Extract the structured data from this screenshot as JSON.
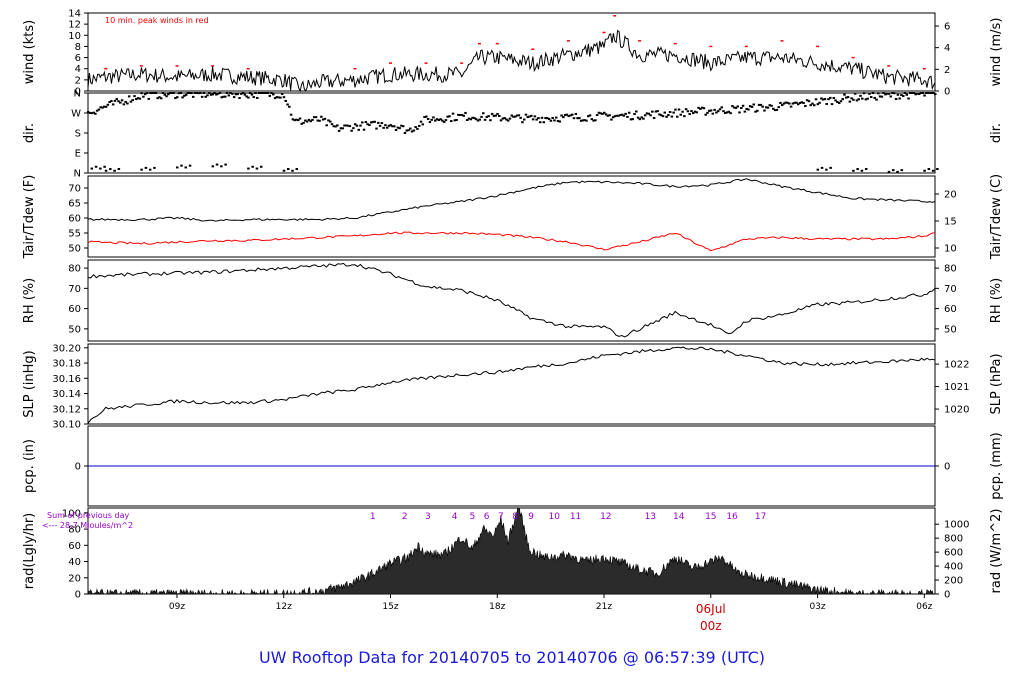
{
  "title": "UW Rooftop Data for 20140705  to  20140706 @ 06:57:39  (UTC)",
  "colors": {
    "series": "#000000",
    "peak": "#ff0000",
    "dewpoint": "#ff0000",
    "precip": "#0000cc",
    "title": "#1a1adb",
    "annotation": "#9900cc",
    "date_label": "#cc0000"
  },
  "x_axis": {
    "range_hours": [
      6.5,
      30.3
    ],
    "ticks": [
      {
        "x": 9,
        "label": "09z"
      },
      {
        "x": 12,
        "label": "12z"
      },
      {
        "x": 15,
        "label": "15z"
      },
      {
        "x": 18,
        "label": "18z"
      },
      {
        "x": 21,
        "label": "21z"
      },
      {
        "x": 24,
        "label": "00z"
      },
      {
        "x": 27,
        "label": "03z"
      },
      {
        "x": 30,
        "label": "06z"
      }
    ],
    "date_label": "06Jul"
  },
  "chart_data": [
    {
      "type": "line",
      "panel": "wind",
      "ylabel": "wind (kts)",
      "ylabel_right": "wind (m/s)",
      "annotation": "10 min. peak winds in red",
      "ylim": [
        0,
        14
      ],
      "yticks": [
        0,
        2,
        4,
        6,
        8,
        10,
        12,
        14
      ],
      "right_ticks": [
        {
          "v": 0,
          "label": "0"
        },
        {
          "v": 3.89,
          "label": "2"
        },
        {
          "v": 7.78,
          "label": "4"
        },
        {
          "v": 11.66,
          "label": "6"
        }
      ],
      "x": [
        6.5,
        7,
        8,
        9,
        10,
        11,
        12,
        12.5,
        13,
        14,
        15,
        16,
        17,
        17.5,
        18,
        19,
        20,
        21,
        21.3,
        22,
        23,
        24,
        25,
        26,
        27,
        28,
        29,
        30,
        30.3
      ],
      "series": [
        {
          "values": [
            2,
            2.5,
            3,
            2.5,
            3,
            2.5,
            2,
            0.5,
            1.5,
            2,
            3,
            3,
            3,
            6,
            6,
            5,
            6.5,
            8,
            10,
            6.5,
            6.5,
            5,
            6,
            6,
            5,
            4,
            2.5,
            2,
            1.5
          ]
        }
      ],
      "peaks_x": [
        7,
        8,
        9,
        10,
        11,
        14,
        15,
        16,
        17,
        17.5,
        18,
        19,
        20,
        21,
        21.3,
        22,
        23,
        24,
        25,
        26,
        27,
        28,
        29,
        30
      ],
      "peaks": [
        4,
        4.5,
        4.5,
        4.5,
        4,
        4,
        5,
        5,
        5,
        8.5,
        8.5,
        7.5,
        9,
        10.5,
        13.5,
        9,
        8.5,
        8,
        8,
        9,
        8,
        6,
        4.5,
        4
      ]
    },
    {
      "type": "scatter",
      "panel": "dir",
      "ylabel": "dir.",
      "ylabel_right": "dir.",
      "ylim": [
        0,
        360
      ],
      "yticks": [
        0,
        90,
        180,
        270,
        360
      ],
      "ytick_labels": [
        "N",
        "E",
        "S",
        "W",
        "N"
      ],
      "x": [
        6.5,
        7,
        8,
        9,
        10,
        11,
        11.5,
        12,
        12.3,
        13,
        13.5,
        14,
        15,
        15.5,
        16,
        17,
        18,
        19,
        20,
        21,
        22,
        23,
        24,
        25,
        26,
        27,
        28,
        29,
        30,
        30.3
      ],
      "values": [
        270,
        300,
        350,
        355,
        355,
        355,
        355,
        355,
        230,
        240,
        200,
        210,
        220,
        190,
        240,
        255,
        250,
        245,
        250,
        255,
        260,
        270,
        280,
        290,
        300,
        320,
        340,
        350,
        355,
        355
      ],
      "low_x": [
        6.6,
        7,
        8,
        9,
        10,
        11,
        12,
        27,
        28,
        29,
        30
      ],
      "low_values": [
        20,
        10,
        15,
        25,
        30,
        20,
        10,
        15,
        10,
        5,
        10
      ]
    },
    {
      "type": "line",
      "panel": "temperature",
      "ylabel": "Tair/Tdew (F)",
      "ylabel_right": "Tair/Tdew (C)",
      "ylim": [
        47,
        74
      ],
      "yticks": [
        50,
        55,
        60,
        65,
        70
      ],
      "right_ticks": [
        {
          "v": 50,
          "label": "10"
        },
        {
          "v": 59,
          "label": "15"
        },
        {
          "v": 68,
          "label": "20"
        }
      ],
      "x": [
        6.5,
        8,
        9,
        10,
        11,
        12,
        13,
        14,
        15,
        16,
        17,
        18,
        19,
        20,
        21,
        22,
        23,
        24,
        25,
        26,
        27,
        28,
        29,
        30,
        30.3
      ],
      "series": [
        {
          "values": [
            59.5,
            59.5,
            60,
            59,
            59.5,
            59.5,
            59.5,
            60,
            62,
            64,
            65.5,
            67.5,
            70,
            72,
            72,
            71.5,
            70.5,
            71,
            73,
            70.5,
            68.5,
            66.5,
            66,
            65.5,
            65.5
          ]
        },
        {
          "values": [
            52,
            51.5,
            52,
            52.5,
            52.5,
            53,
            53.5,
            54,
            55,
            55,
            55,
            54.5,
            53.5,
            52,
            49.5,
            52,
            55,
            49,
            53,
            53.5,
            53,
            53,
            53,
            54,
            55
          ]
        }
      ]
    },
    {
      "type": "line",
      "panel": "rh",
      "ylabel": "RH (%)",
      "ylabel_right": "RH (%)",
      "ylim": [
        44,
        84
      ],
      "yticks": [
        50,
        60,
        70,
        80
      ],
      "right_ticks": [
        {
          "v": 50,
          "label": "50"
        },
        {
          "v": 60,
          "label": "60"
        },
        {
          "v": 70,
          "label": "70"
        },
        {
          "v": 80,
          "label": "80"
        }
      ],
      "x": [
        6.5,
        8,
        10,
        12,
        14,
        15,
        16,
        17,
        18,
        19,
        20,
        21,
        21.5,
        22,
        23,
        24,
        24.5,
        25,
        26,
        27,
        28,
        29,
        30,
        30.3
      ],
      "series": [
        {
          "values": [
            76,
            77,
            78,
            80,
            82,
            77,
            71,
            69,
            64,
            55,
            51,
            51,
            46,
            50,
            58,
            52,
            47,
            54,
            57,
            62,
            63,
            65,
            67,
            70
          ]
        }
      ]
    },
    {
      "type": "line",
      "panel": "pressure",
      "ylabel": "SLP (inHg)",
      "ylabel_right": "SLP (hPa)",
      "ylim": [
        30.1,
        30.205
      ],
      "yticks": [
        30.1,
        30.12,
        30.14,
        30.16,
        30.18,
        30.2
      ],
      "ytick_labels": [
        "30.10",
        "30.12",
        "30.14",
        "30.16",
        "30.18",
        "30.20"
      ],
      "right_ticks": [
        {
          "v": 30.1196,
          "label": "1020"
        },
        {
          "v": 30.1491,
          "label": "1021"
        },
        {
          "v": 30.1786,
          "label": "1022"
        }
      ],
      "x": [
        6.5,
        7,
        8,
        9,
        10,
        11,
        12,
        13,
        14,
        15,
        16,
        17,
        18,
        19,
        20,
        21,
        22,
        23,
        24,
        25,
        26,
        27,
        28,
        29,
        30,
        30.3
      ],
      "series": [
        {
          "values": [
            30.103,
            30.12,
            30.125,
            30.13,
            30.128,
            30.128,
            30.132,
            30.14,
            30.145,
            30.155,
            30.16,
            30.165,
            30.168,
            30.175,
            30.18,
            30.19,
            30.195,
            30.2,
            30.198,
            30.19,
            30.18,
            30.178,
            30.18,
            30.182,
            30.185,
            30.184
          ]
        }
      ]
    },
    {
      "type": "line",
      "panel": "precip",
      "ylabel": "pcp. (in)",
      "ylabel_right": "pcp. (mm)",
      "ylim": [
        -1,
        1
      ],
      "yticks": [
        0
      ],
      "ytick_labels": [
        "0"
      ],
      "right_ticks": [
        {
          "v": 0,
          "label": "0"
        }
      ],
      "x": [
        6.5,
        30.3
      ],
      "series": [
        {
          "values": [
            0,
            0
          ]
        }
      ]
    },
    {
      "type": "area",
      "panel": "radiation",
      "ylabel": "rad(Lgly/hr)",
      "ylabel_right": "rad (W/m^2)",
      "ylim": [
        0,
        106
      ],
      "yticks": [
        0,
        20,
        40,
        60,
        80,
        100
      ],
      "right_ticks": [
        {
          "v": 0,
          "label": "0"
        },
        {
          "v": 17.2,
          "label": "200"
        },
        {
          "v": 34.4,
          "label": "400"
        },
        {
          "v": 51.6,
          "label": "600"
        },
        {
          "v": 68.8,
          "label": "800"
        },
        {
          "v": 86,
          "label": "1000"
        }
      ],
      "annotation_lines": [
        "Sum of previous day",
        "<--- 28.7 MJoules/m^2"
      ],
      "hour_labels": [
        {
          "x": 14.5,
          "label": "1"
        },
        {
          "x": 15.4,
          "label": "2"
        },
        {
          "x": 16.05,
          "label": "3"
        },
        {
          "x": 16.8,
          "label": "4"
        },
        {
          "x": 17.3,
          "label": "5"
        },
        {
          "x": 17.7,
          "label": "6"
        },
        {
          "x": 18.1,
          "label": "7"
        },
        {
          "x": 18.5,
          "label": "8"
        },
        {
          "x": 18.95,
          "label": "9"
        },
        {
          "x": 19.6,
          "label": "10"
        },
        {
          "x": 20.2,
          "label": "11"
        },
        {
          "x": 21.05,
          "label": "12"
        },
        {
          "x": 22.3,
          "label": "13"
        },
        {
          "x": 23.1,
          "label": "14"
        },
        {
          "x": 24.0,
          "label": "15"
        },
        {
          "x": 24.6,
          "label": "16"
        },
        {
          "x": 25.4,
          "label": "17"
        }
      ],
      "x": [
        6.5,
        12,
        13,
        13.5,
        14,
        14.5,
        15,
        15.5,
        15.8,
        16,
        16.5,
        17,
        17.3,
        17.6,
        17.9,
        18.1,
        18.3,
        18.6,
        18.9,
        19.3,
        20,
        20.5,
        21,
        21.5,
        22,
        22.5,
        23,
        23.5,
        24,
        24.3,
        24.8,
        25.5,
        26,
        26.5,
        27,
        27.5,
        28,
        30.3
      ],
      "values": [
        0,
        0,
        3,
        8,
        15,
        25,
        38,
        45,
        60,
        50,
        48,
        70,
        55,
        80,
        72,
        92,
        65,
        108,
        55,
        45,
        48,
        40,
        45,
        38,
        30,
        25,
        45,
        32,
        40,
        45,
        25,
        20,
        15,
        10,
        5,
        3,
        0,
        0
      ]
    }
  ]
}
